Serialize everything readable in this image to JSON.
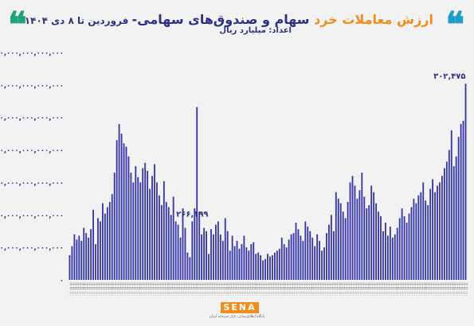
{
  "header": {
    "quote_glyph": "❝",
    "title_part1": "ارزش معاملات خرد",
    "title_part2": " سهام و صندوق‌های سهامی-",
    "title_part3": " فروردین تا ۸ دی ۱۴۰۴",
    "unit_label": "اعداد: میلیارد ریال"
  },
  "footer": {
    "logo_text": "SENA",
    "logo_subtitle": "پایگاه اطلاع‌رسانی بازار سرمایه ایران"
  },
  "colors": {
    "bar": "#3535a6",
    "axis_text": "#2b2f86",
    "title_orange": "#f28c1b",
    "title_navy": "#2b2f86",
    "quote_blue": "#1e9fc9",
    "quote_green": "#1fa27a"
  },
  "chart_data": {
    "type": "bar",
    "title": "ارزش معاملات خرد سهام و صندوق‌های سهامی- فروردین تا ۸ دی ۱۴۰۴",
    "ylabel": "اعداد: میلیارد ریال",
    "ylim": [
      0,
      350000000000000
    ],
    "yticks": [
      "۰",
      "۵۰,۰۰۰,۰۰۰,۰۰۰,۰۰۰",
      "۱۰۰,۰۰۰,۰۰۰,۰۰۰,۰۰۰",
      "۱۵۰,۰۰۰,۰۰۰,۰۰۰,۰۰۰",
      "۲۰۰,۰۰۰,۰۰۰,۰۰۰,۰۰۰",
      "۲۵۰,۰۰۰,۰۰۰,۰۰۰,۰۰۰",
      "۳۰۰,۰۰۰,۰۰۰,۰۰۰,۰۰۰",
      "۳۵۰,۰۰۰,۰۰۰,۰۰۰,۰۰۰"
    ],
    "x_tick_label": "۱۴۰۴/۰۰/۰۰",
    "grid": false,
    "legend": "none",
    "annotations": [
      {
        "index": 52,
        "text": "۲۶۶,۱۹۹"
      },
      {
        "index": 168,
        "text": "۳۰۲,۴۷۵"
      }
    ],
    "values_unit": "billion rials (trillions on axis)",
    "values": [
      38,
      52,
      70,
      62,
      68,
      60,
      80,
      72,
      65,
      78,
      108,
      55,
      95,
      90,
      118,
      102,
      112,
      120,
      132,
      165,
      215,
      240,
      225,
      210,
      205,
      190,
      165,
      150,
      175,
      158,
      150,
      172,
      180,
      168,
      140,
      160,
      178,
      150,
      130,
      115,
      152,
      120,
      112,
      100,
      128,
      90,
      85,
      65,
      110,
      80,
      42,
      35,
      90,
      110,
      266,
      105,
      70,
      80,
      75,
      40,
      78,
      70,
      85,
      90,
      70,
      60,
      95,
      75,
      45,
      68,
      52,
      60,
      48,
      55,
      68,
      50,
      45,
      55,
      58,
      40,
      42,
      38,
      30,
      32,
      40,
      36,
      38,
      42,
      45,
      48,
      65,
      55,
      50,
      62,
      70,
      72,
      88,
      78,
      68,
      60,
      90,
      82,
      75,
      65,
      52,
      70,
      60,
      45,
      50,
      72,
      85,
      100,
      75,
      135,
      125,
      118,
      105,
      95,
      120,
      150,
      160,
      145,
      125,
      138,
      165,
      128,
      110,
      115,
      145,
      135,
      118,
      105,
      98,
      75,
      88,
      68,
      82,
      65,
      70,
      80,
      95,
      110,
      98,
      88,
      102,
      112,
      125,
      118,
      130,
      135,
      150,
      122,
      115,
      140,
      155,
      135,
      145,
      150,
      160,
      172,
      182,
      200,
      230,
      175,
      190,
      220,
      240,
      245,
      302
    ]
  }
}
